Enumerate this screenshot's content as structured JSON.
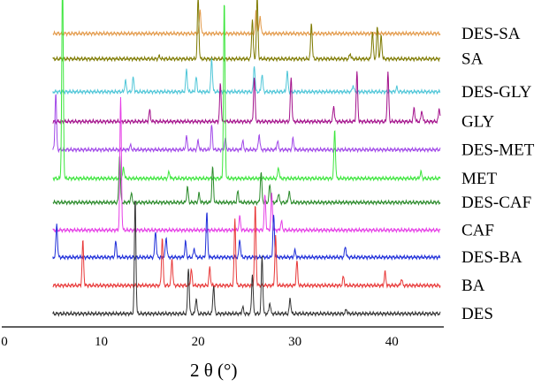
{
  "chart_data": {
    "type": "line",
    "title": "",
    "xlabel": "2 θ (°)",
    "ylabel": "",
    "xlim": [
      0,
      45
    ],
    "x_ticks": [
      0,
      10,
      20,
      30,
      40
    ],
    "grid": false,
    "legend": "none (series labeled at right end of each trace)",
    "series": [
      {
        "name": "DES-SA",
        "color": "#E39A4A",
        "baseline": 0.965,
        "peaks": [
          [
            20.2,
            0.55
          ],
          [
            26.0,
            0.55
          ],
          [
            26.4,
            0.4
          ]
        ]
      },
      {
        "name": "SA",
        "color": "#7E7A00",
        "baseline": 0.868,
        "peaks": [
          [
            20.0,
            1.4
          ],
          [
            25.6,
            0.9
          ],
          [
            26.1,
            1.4
          ],
          [
            31.7,
            0.82
          ],
          [
            38.0,
            0.6
          ],
          [
            38.5,
            0.72
          ],
          [
            38.9,
            0.52
          ],
          [
            35.7,
            0.12
          ],
          [
            16.0,
            0.06
          ]
        ]
      },
      {
        "name": "DES-GLY",
        "color": "#4FC6D8",
        "baseline": 0.742,
        "peaks": [
          [
            12.5,
            0.25
          ],
          [
            13.3,
            0.32
          ],
          [
            18.8,
            0.5
          ],
          [
            19.8,
            0.32
          ],
          [
            21.4,
            0.75
          ],
          [
            25.8,
            0.6
          ],
          [
            26.6,
            0.4
          ],
          [
            29.2,
            0.45
          ],
          [
            36.0,
            0.15
          ],
          [
            40.5,
            0.1
          ]
        ]
      },
      {
        "name": "GLY",
        "color": "#A3108B",
        "baseline": 0.628,
        "peaks": [
          [
            15.0,
            0.25
          ],
          [
            22.3,
            0.85
          ],
          [
            25.8,
            1.0
          ],
          [
            29.6,
            1.0
          ],
          [
            34.0,
            0.35
          ],
          [
            36.4,
            1.1
          ],
          [
            39.6,
            1.1
          ],
          [
            42.3,
            0.3
          ],
          [
            43.1,
            0.25
          ],
          [
            44.9,
            0.3
          ]
        ]
      },
      {
        "name": "DES-MET",
        "color": "#A148E8",
        "baseline": 0.52,
        "peaks": [
          [
            5.3,
            1.3
          ],
          [
            13.0,
            0.1
          ],
          [
            18.8,
            0.3
          ],
          [
            20.0,
            0.2
          ],
          [
            21.4,
            0.55
          ],
          [
            22.8,
            0.25
          ],
          [
            24.6,
            0.2
          ],
          [
            26.3,
            0.35
          ],
          [
            28.2,
            0.2
          ],
          [
            29.8,
            0.25
          ]
        ]
      },
      {
        "name": "MET",
        "color": "#3DE63D",
        "baseline": 0.41,
        "peaks": [
          [
            6.0,
            4.5
          ],
          [
            12.3,
            0.25
          ],
          [
            17.0,
            0.15
          ],
          [
            22.7,
            4.0
          ],
          [
            28.3,
            0.25
          ],
          [
            34.1,
            1.1
          ],
          [
            43.0,
            0.15
          ]
        ]
      },
      {
        "name": "DES-CAF",
        "color": "#2A8A2A",
        "baseline": 0.318,
        "peaks": [
          [
            11.9,
            1.1
          ],
          [
            13.1,
            0.2
          ],
          [
            18.9,
            0.35
          ],
          [
            20.1,
            0.2
          ],
          [
            21.5,
            0.8
          ],
          [
            24.1,
            0.25
          ],
          [
            26.5,
            0.7
          ],
          [
            27.4,
            0.4
          ],
          [
            28.3,
            0.2
          ],
          [
            29.4,
            0.25
          ]
        ]
      },
      {
        "name": "CAF",
        "color": "#E63FE6",
        "baseline": 0.212,
        "peaks": [
          [
            12.0,
            3.0
          ],
          [
            24.3,
            0.3
          ],
          [
            26.9,
            0.8
          ],
          [
            27.6,
            0.8
          ],
          [
            28.6,
            0.2
          ]
        ]
      },
      {
        "name": "DES-BA",
        "color": "#1E2ED9",
        "baseline": 0.108,
        "peaks": [
          [
            5.4,
            0.75
          ],
          [
            11.5,
            0.35
          ],
          [
            15.6,
            0.6
          ],
          [
            16.7,
            0.45
          ],
          [
            18.7,
            0.35
          ],
          [
            19.6,
            0.2
          ],
          [
            20.9,
            1.0
          ],
          [
            24.3,
            0.4
          ],
          [
            27.8,
            0.95
          ],
          [
            30.0,
            0.15
          ],
          [
            35.2,
            0.25
          ]
        ]
      },
      {
        "name": "BA",
        "color": "#E83838",
        "baseline": 0.0,
        "peaks": [
          [
            8.1,
            1.0
          ],
          [
            16.3,
            1.1
          ],
          [
            17.3,
            0.6
          ],
          [
            19.3,
            0.35
          ],
          [
            21.2,
            0.4
          ],
          [
            23.8,
            1.5
          ],
          [
            25.9,
            1.8
          ],
          [
            28.0,
            1.1
          ],
          [
            30.2,
            0.55
          ],
          [
            35.0,
            0.2
          ],
          [
            39.3,
            0.3
          ],
          [
            41.0,
            0.15
          ]
        ]
      },
      {
        "name": "DES",
        "color": "#333333",
        "baseline": -0.108,
        "peaks": [
          [
            13.5,
            2.6
          ],
          [
            19.0,
            1.05
          ],
          [
            19.8,
            0.35
          ],
          [
            21.6,
            0.65
          ],
          [
            24.6,
            0.15
          ],
          [
            25.6,
            0.9
          ],
          [
            26.6,
            1.3
          ],
          [
            27.4,
            0.25
          ],
          [
            29.5,
            0.35
          ],
          [
            35.3,
            0.1
          ]
        ]
      }
    ]
  }
}
